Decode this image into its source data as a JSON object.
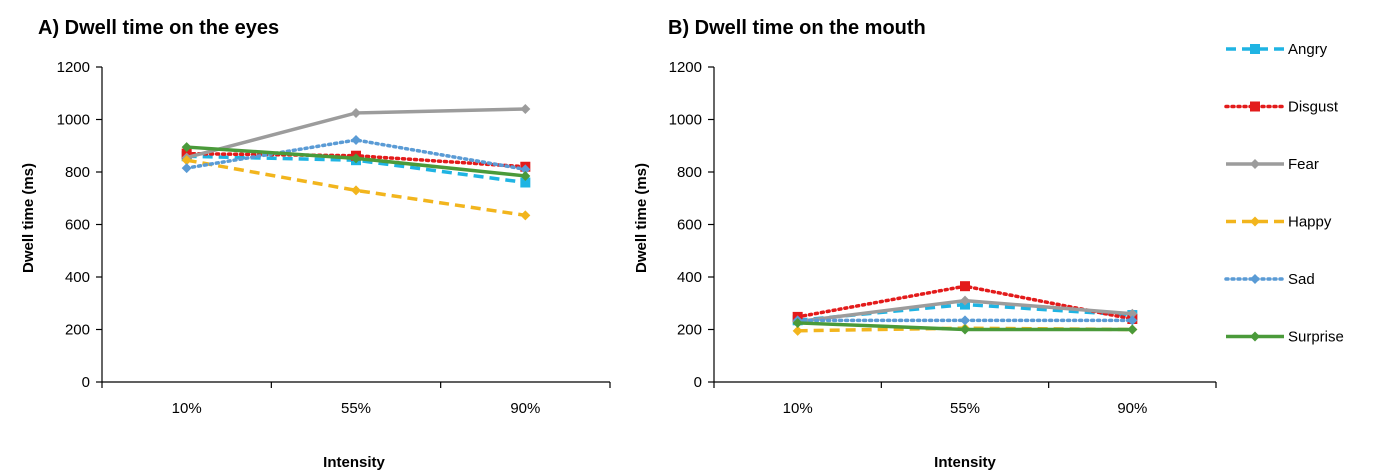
{
  "chart_data": [
    {
      "type": "line",
      "title": "A) Dwell time on the eyes",
      "xlabel": "Intensity",
      "ylabel": "Dwell time (ms)",
      "categories": [
        "10%",
        "55%",
        "90%"
      ],
      "ylim": [
        0,
        1200
      ],
      "yticks": [
        0,
        200,
        400,
        600,
        800,
        1000,
        1200
      ],
      "series": [
        {
          "name": "Angry",
          "values": [
            860,
            845,
            760
          ]
        },
        {
          "name": "Disgust",
          "values": [
            870,
            862,
            820
          ]
        },
        {
          "name": "Fear",
          "values": [
            855,
            1025,
            1040
          ]
        },
        {
          "name": "Happy",
          "values": [
            845,
            730,
            635
          ]
        },
        {
          "name": "Sad",
          "values": [
            815,
            922,
            810
          ]
        },
        {
          "name": "Surprise",
          "values": [
            895,
            852,
            785
          ]
        }
      ]
    },
    {
      "type": "line",
      "title": "B) Dwell time on the mouth",
      "xlabel": "Intensity",
      "ylabel": "Dwell time (ms)",
      "categories": [
        "10%",
        "55%",
        "90%"
      ],
      "ylim": [
        0,
        1200
      ],
      "yticks": [
        0,
        200,
        400,
        600,
        800,
        1000,
        1200
      ],
      "series": [
        {
          "name": "Angry",
          "values": [
            235,
            295,
            255
          ]
        },
        {
          "name": "Disgust",
          "values": [
            248,
            365,
            240
          ]
        },
        {
          "name": "Fear",
          "values": [
            230,
            310,
            260
          ]
        },
        {
          "name": "Happy",
          "values": [
            195,
            205,
            200
          ]
        },
        {
          "name": "Sad",
          "values": [
            235,
            235,
            235
          ]
        },
        {
          "name": "Surprise",
          "values": [
            225,
            200,
            200
          ]
        }
      ]
    }
  ],
  "legend": {
    "position": "right",
    "items": [
      {
        "name": "Angry",
        "color": "#1fb4e3",
        "dash": "dash",
        "marker": "square"
      },
      {
        "name": "Disgust",
        "color": "#e31b1b",
        "dash": "dot",
        "marker": "square"
      },
      {
        "name": "Fear",
        "color": "#9c9c9c",
        "dash": "solid",
        "marker": "diamond"
      },
      {
        "name": "Happy",
        "color": "#f2b51d",
        "dash": "dash",
        "marker": "diamond"
      },
      {
        "name": "Sad",
        "color": "#5a9bd5",
        "dash": "dot",
        "marker": "diamond"
      },
      {
        "name": "Surprise",
        "color": "#4a9a3a",
        "dash": "solid",
        "marker": "diamond"
      }
    ]
  }
}
